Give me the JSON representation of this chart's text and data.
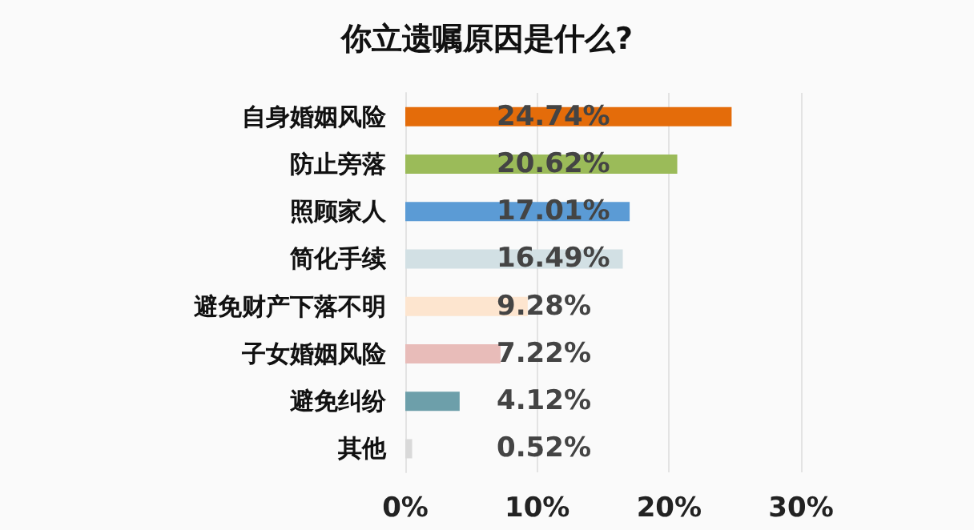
{
  "chart_data": {
    "type": "bar",
    "orientation": "horizontal",
    "title": "你立遗嘱原因是什么?",
    "categories": [
      "自身婚姻风险",
      "防止旁落",
      "照顾家人",
      "简化手续",
      "避免财产下落不明",
      "子女婚姻风险",
      "避免纠纷",
      "其他"
    ],
    "values": [
      24.74,
      20.62,
      17.01,
      16.49,
      9.28,
      7.22,
      4.12,
      0.52
    ],
    "colors": [
      "#e46c0a",
      "#9bbb59",
      "#5b9bd5",
      "#d2e0e4",
      "#fde5cf",
      "#e8bcb9",
      "#6d9faa",
      "#d9d9d9"
    ],
    "value_labels": [
      "24.74%",
      "20.62%",
      "17.01%",
      "16.49%",
      "9.28%",
      "7.22%",
      "4.12%",
      "0.52%"
    ],
    "xlim": [
      0,
      30
    ],
    "xticks": [
      {
        "value": 0,
        "label": "0%"
      },
      {
        "value": 10,
        "label": "10%"
      },
      {
        "value": 20,
        "label": "20%"
      },
      {
        "value": 30,
        "label": "30%"
      }
    ],
    "grid": "x"
  }
}
